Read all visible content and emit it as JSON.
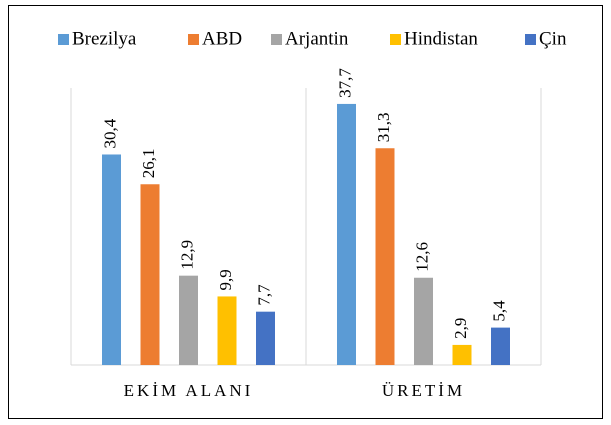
{
  "chart_data": {
    "type": "bar",
    "categories": [
      "EKİM ALANI",
      "ÜRETİM"
    ],
    "series": [
      {
        "name": "Brezilya",
        "color": "#5b9bd5",
        "values": [
          30.4,
          37.7
        ],
        "value_labels": [
          "30,4",
          "37,7"
        ]
      },
      {
        "name": "ABD",
        "color": "#ed7d31",
        "values": [
          26.1,
          31.3
        ],
        "value_labels": [
          "26,1",
          "31,3"
        ]
      },
      {
        "name": "Arjantin",
        "color": "#a5a5a5",
        "values": [
          12.9,
          12.6
        ],
        "value_labels": [
          "12,9",
          "12,6"
        ]
      },
      {
        "name": "Hindistan",
        "color": "#ffc000",
        "values": [
          9.9,
          2.9
        ],
        "value_labels": [
          "9,9",
          "2,9"
        ]
      },
      {
        "name": "Çin",
        "color": "#4472c4",
        "values": [
          7.7,
          5.4
        ],
        "value_labels": [
          "7,7",
          "5,4"
        ]
      }
    ],
    "ylim": [
      0,
      40
    ],
    "legend": "top"
  }
}
